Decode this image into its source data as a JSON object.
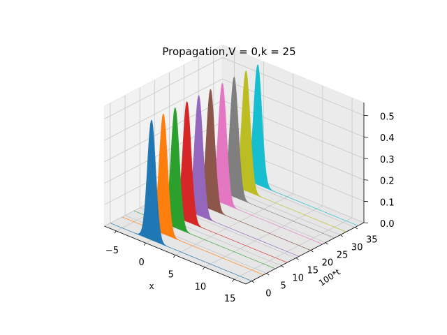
{
  "chart_data": {
    "type": "area",
    "projection": "3d",
    "title": "Propagation,V = 0,k = 25",
    "xlabel": "x",
    "ylabel": "100*t",
    "zlabel": "",
    "xlim": [
      -7,
      17
    ],
    "ylim": [
      -2,
      38
    ],
    "zlim": [
      0,
      0.56
    ],
    "x_ticks": [
      -5,
      0,
      5,
      10,
      15
    ],
    "y_ticks": [
      0,
      5,
      10,
      15,
      20,
      25,
      30,
      35
    ],
    "z_ticks": [
      0.0,
      0.1,
      0.2,
      0.3,
      0.4,
      0.5
    ],
    "x_tick_labels": [
      "−5",
      "0",
      "5",
      "10",
      "15"
    ],
    "y_tick_labels": [
      "0",
      "5",
      "10",
      "15",
      "20",
      "25",
      "30",
      "35"
    ],
    "z_tick_labels": [
      "0.0",
      "0.1",
      "0.2",
      "0.3",
      "0.4",
      "0.5"
    ],
    "grid": true,
    "peak_shape": "gaussian",
    "peak_width": 0.7,
    "series": [
      {
        "t": 0,
        "center_x": 0.0,
        "peak": 0.56,
        "color": "#1f77b4"
      },
      {
        "t": 4,
        "center_x": 0.0,
        "peak": 0.56,
        "color": "#ff7f0e"
      },
      {
        "t": 8,
        "center_x": 0.0,
        "peak": 0.56,
        "color": "#2ca02c"
      },
      {
        "t": 12,
        "center_x": 0.0,
        "peak": 0.56,
        "color": "#d62728"
      },
      {
        "t": 16,
        "center_x": 0.0,
        "peak": 0.56,
        "color": "#9467bd"
      },
      {
        "t": 20,
        "center_x": 0.0,
        "peak": 0.56,
        "color": "#8c564b"
      },
      {
        "t": 24,
        "center_x": 0.0,
        "peak": 0.56,
        "color": "#e377c2"
      },
      {
        "t": 28,
        "center_x": 0.0,
        "peak": 0.56,
        "color": "#7f7f7f"
      },
      {
        "t": 32,
        "center_x": 0.0,
        "peak": 0.56,
        "color": "#bcbd22"
      },
      {
        "t": 36,
        "center_x": 0.0,
        "peak": 0.56,
        "color": "#17becf"
      }
    ]
  }
}
